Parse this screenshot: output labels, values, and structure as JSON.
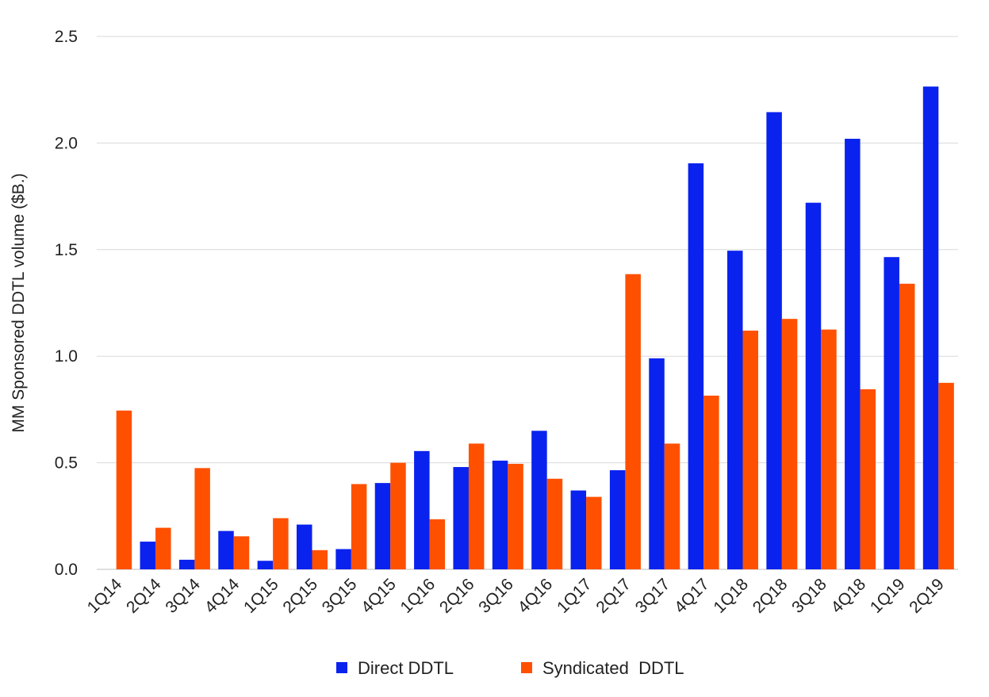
{
  "chart_data": {
    "type": "bar",
    "title": "",
    "xlabel": "",
    "ylabel": "MM Sponsored DDTL volume ($B.)",
    "ylim": [
      0,
      2.5
    ],
    "yticks": [
      "0.0",
      "0.5",
      "1.0",
      "1.5",
      "2.0",
      "2.5"
    ],
    "ytick_values": [
      0,
      0.5,
      1.0,
      1.5,
      2.0,
      2.5
    ],
    "grid": true,
    "legend_position": "bottom",
    "categories": [
      "1Q14",
      "2Q14",
      "3Q14",
      "4Q14",
      "1Q15",
      "2Q15",
      "3Q15",
      "4Q15",
      "1Q16",
      "2Q16",
      "3Q16",
      "4Q16",
      "1Q17",
      "2Q17",
      "3Q17",
      "4Q17",
      "1Q18",
      "2Q18",
      "3Q18",
      "4Q18",
      "1Q19",
      "2Q19"
    ],
    "series": [
      {
        "name": "Direct DDTL",
        "color": "#0a22ee",
        "values": [
          0,
          0.13,
          0.045,
          0.18,
          0.04,
          0.21,
          0.095,
          0.405,
          0.555,
          0.48,
          0.51,
          0.65,
          0.37,
          0.465,
          0.99,
          1.905,
          1.495,
          2.145,
          1.72,
          2.02,
          1.465,
          2.265
        ]
      },
      {
        "name": "Syndicated  DDTL",
        "color": "#ff5000",
        "values": [
          0.745,
          0.195,
          0.475,
          0.155,
          0.24,
          0.09,
          0.4,
          0.5,
          0.235,
          0.59,
          0.495,
          0.425,
          0.34,
          1.385,
          0.59,
          0.815,
          1.12,
          1.175,
          1.125,
          0.845,
          1.34,
          0.875
        ]
      }
    ]
  }
}
